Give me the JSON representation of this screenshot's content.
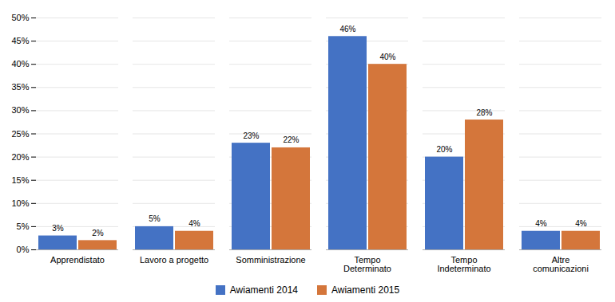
{
  "chart_data": {
    "type": "bar",
    "categories": [
      "Apprendistato",
      "Lavoro a progetto",
      "Somministrazione",
      "Tempo\nDeterminato",
      "Tempo\nIndeterminato",
      "Altre\ncomunicazioni"
    ],
    "series": [
      {
        "name": "Awiamenti 2014",
        "color": "#4472C4",
        "values": [
          3,
          5,
          23,
          46,
          20,
          4
        ],
        "value_labels": [
          "3%",
          "5%",
          "23%",
          "46%",
          "20%",
          "4%"
        ]
      },
      {
        "name": "Awiamenti 2015",
        "color": "#D4763B",
        "values": [
          2,
          4,
          22,
          40,
          28,
          4
        ],
        "value_labels": [
          "2%",
          "4%",
          "22%",
          "40%",
          "28%",
          "4%"
        ]
      }
    ],
    "ylim": [
      0,
      50
    ],
    "yticks": [
      {
        "value": 0,
        "label": "0%"
      },
      {
        "value": 5,
        "label": "5%"
      },
      {
        "value": 10,
        "label": "10%"
      },
      {
        "value": 15,
        "label": "15%"
      },
      {
        "value": 20,
        "label": "20%"
      },
      {
        "value": 25,
        "label": "25%"
      },
      {
        "value": 30,
        "label": "30%"
      },
      {
        "value": 35,
        "label": "35%"
      },
      {
        "value": 40,
        "label": "40%"
      },
      {
        "value": 45,
        "label": "45%"
      },
      {
        "value": 50,
        "label": "50%"
      }
    ],
    "grid": true,
    "legend": "bottom",
    "data_labels": true
  }
}
